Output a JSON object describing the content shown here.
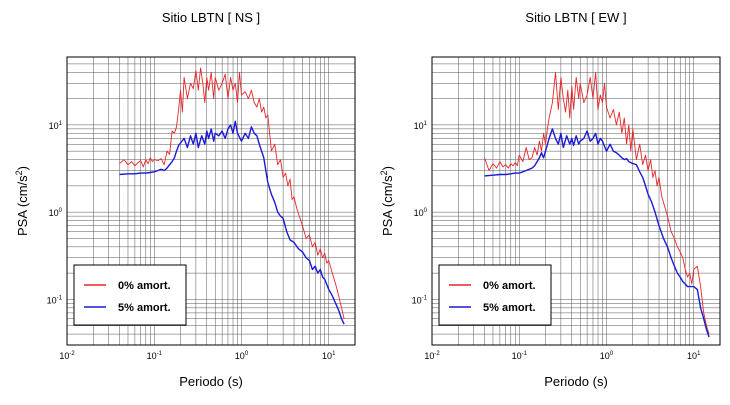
{
  "chart_data": [
    {
      "type": "line",
      "title": "Sitio LBTN [ NS ]",
      "xlabel": "Periodo (s)",
      "ylabel": "PSA (cm/s",
      "ylabel_sup": "2",
      "ylabel_close": ")",
      "xscale": "log",
      "yscale": "log",
      "xlim": [
        0.01,
        20
      ],
      "ylim": [
        0.03,
        60
      ],
      "grid": true,
      "legend_position": "bottom-left",
      "series": [
        {
          "name": "0% amort.",
          "color": "#e8262a",
          "x": [
            0.04,
            0.045,
            0.05,
            0.055,
            0.06,
            0.065,
            0.07,
            0.075,
            0.08,
            0.085,
            0.09,
            0.095,
            0.1,
            0.11,
            0.12,
            0.13,
            0.14,
            0.15,
            0.16,
            0.17,
            0.18,
            0.19,
            0.2,
            0.21,
            0.22,
            0.24,
            0.26,
            0.28,
            0.3,
            0.32,
            0.34,
            0.36,
            0.38,
            0.4,
            0.42,
            0.45,
            0.48,
            0.5,
            0.55,
            0.6,
            0.65,
            0.7,
            0.75,
            0.8,
            0.85,
            0.9,
            0.95,
            1.0,
            1.1,
            1.2,
            1.3,
            1.4,
            1.5,
            1.6,
            1.7,
            1.8,
            1.9,
            2.0,
            2.2,
            2.4,
            2.6,
            2.8,
            3.0,
            3.2,
            3.4,
            3.6,
            3.8,
            4.0,
            4.3,
            4.6,
            5.0,
            5.5,
            6.0,
            6.5,
            7.0,
            7.5,
            8.0,
            8.5,
            9.0,
            9.5,
            10,
            11,
            12,
            13,
            14,
            15
          ],
          "values": [
            3.6,
            4.0,
            3.5,
            3.8,
            3.4,
            3.7,
            3.9,
            3.3,
            4.0,
            3.6,
            4.2,
            3.8,
            4.0,
            3.9,
            4.1,
            3.5,
            5.0,
            4.6,
            8.5,
            8.0,
            9.5,
            15,
            25,
            14,
            35,
            20,
            30,
            26,
            42,
            25,
            45,
            30,
            18,
            35,
            25,
            40,
            20,
            35,
            25,
            30,
            38,
            20,
            35,
            25,
            30,
            18,
            40,
            22,
            24,
            20,
            25,
            18,
            16,
            20,
            14,
            16,
            12,
            13,
            5,
            6,
            3.5,
            4,
            2.5,
            2.8,
            2,
            2.4,
            1.4,
            1.5,
            1.1,
            0.9,
            0.7,
            0.5,
            0.55,
            0.4,
            0.45,
            0.32,
            0.38,
            0.3,
            0.34,
            0.26,
            0.28,
            0.2,
            0.15,
            0.11,
            0.08,
            0.06
          ]
        },
        {
          "name": "5% amort.",
          "color": "#1a1ad6",
          "x": [
            0.04,
            0.05,
            0.06,
            0.07,
            0.08,
            0.09,
            0.1,
            0.11,
            0.12,
            0.13,
            0.14,
            0.15,
            0.16,
            0.17,
            0.18,
            0.19,
            0.2,
            0.22,
            0.24,
            0.26,
            0.28,
            0.3,
            0.32,
            0.35,
            0.38,
            0.4,
            0.42,
            0.45,
            0.48,
            0.5,
            0.55,
            0.6,
            0.65,
            0.7,
            0.75,
            0.8,
            0.85,
            0.9,
            1.0,
            1.1,
            1.2,
            1.3,
            1.4,
            1.5,
            1.6,
            1.7,
            1.8,
            1.9,
            2.0,
            2.2,
            2.4,
            2.6,
            2.8,
            3.0,
            3.3,
            3.6,
            4.0,
            4.5,
            5.0,
            5.5,
            6.0,
            6.5,
            7.0,
            7.5,
            8.0,
            8.5,
            9.0,
            10,
            11,
            12,
            13,
            14,
            15
          ],
          "values": [
            2.7,
            2.75,
            2.75,
            2.8,
            2.8,
            2.85,
            2.9,
            3.0,
            3.1,
            3.0,
            3.2,
            3.5,
            3.8,
            4.2,
            5.0,
            5.8,
            6.2,
            7.0,
            5.5,
            7.5,
            6.0,
            8.0,
            5.5,
            7.5,
            6.0,
            8.5,
            7.0,
            9.0,
            6.5,
            8.0,
            7.5,
            8.5,
            7.0,
            9.0,
            10,
            8.0,
            11,
            8.0,
            6.5,
            8.0,
            7.0,
            9.5,
            8.0,
            7.5,
            6.0,
            5.0,
            4.2,
            3.0,
            2.2,
            1.6,
            1.3,
            1.0,
            0.9,
            0.85,
            0.6,
            0.48,
            0.45,
            0.38,
            0.35,
            0.3,
            0.28,
            0.22,
            0.24,
            0.2,
            0.22,
            0.18,
            0.17,
            0.13,
            0.11,
            0.09,
            0.075,
            0.06,
            0.052
          ]
        }
      ],
      "legend": [
        "0% amort.",
        "5% amort."
      ]
    },
    {
      "type": "line",
      "title": "Sitio LBTN [ EW ]",
      "xlabel": "Periodo (s)",
      "ylabel": "PSA (cm/s",
      "ylabel_sup": "2",
      "ylabel_close": ")",
      "xscale": "log",
      "yscale": "log",
      "xlim": [
        0.01,
        20
      ],
      "ylim": [
        0.03,
        60
      ],
      "grid": true,
      "legend_position": "bottom-left",
      "series": [
        {
          "name": "0% amort.",
          "color": "#e8262a",
          "x": [
            0.04,
            0.045,
            0.05,
            0.055,
            0.06,
            0.065,
            0.07,
            0.075,
            0.08,
            0.085,
            0.09,
            0.095,
            0.1,
            0.11,
            0.12,
            0.13,
            0.14,
            0.15,
            0.16,
            0.17,
            0.18,
            0.19,
            0.2,
            0.21,
            0.22,
            0.24,
            0.26,
            0.28,
            0.3,
            0.32,
            0.34,
            0.36,
            0.38,
            0.4,
            0.42,
            0.45,
            0.48,
            0.5,
            0.55,
            0.6,
            0.65,
            0.7,
            0.75,
            0.8,
            0.85,
            0.9,
            0.95,
            1.0,
            1.1,
            1.2,
            1.3,
            1.4,
            1.5,
            1.6,
            1.7,
            1.8,
            1.9,
            2.0,
            2.2,
            2.4,
            2.6,
            2.8,
            3.0,
            3.2,
            3.4,
            3.6,
            3.8,
            4.0,
            4.3,
            4.6,
            5.0,
            5.5,
            6.0,
            6.5,
            7.0,
            7.5,
            8.0,
            8.5,
            9.0,
            9.5,
            10,
            11,
            12,
            13,
            14,
            15
          ],
          "values": [
            4.2,
            3.0,
            3.6,
            3.2,
            3.8,
            3.3,
            3.5,
            3.2,
            3.6,
            3.4,
            3.7,
            3.4,
            4.5,
            3.8,
            5.5,
            4.0,
            4.2,
            5.5,
            4.5,
            6.5,
            5.0,
            8.0,
            6.0,
            9.0,
            12,
            18,
            40,
            15,
            35,
            20,
            14,
            25,
            12,
            28,
            15,
            35,
            20,
            30,
            18,
            22,
            35,
            20,
            40,
            15,
            22,
            18,
            30,
            16,
            12,
            15,
            10,
            14,
            8,
            12,
            6,
            10,
            5,
            9,
            4,
            6,
            3.5,
            4.5,
            3,
            4,
            2.5,
            3,
            2,
            2.5,
            1.5,
            1.2,
            0.9,
            0.6,
            0.5,
            0.4,
            0.35,
            0.3,
            0.22,
            0.18,
            0.2,
            0.15,
            0.22,
            0.24,
            0.14,
            0.07,
            0.05,
            0.04
          ]
        },
        {
          "name": "5% amort.",
          "color": "#1a1ad6",
          "x": [
            0.04,
            0.05,
            0.06,
            0.07,
            0.08,
            0.09,
            0.1,
            0.11,
            0.12,
            0.13,
            0.14,
            0.15,
            0.16,
            0.17,
            0.18,
            0.19,
            0.2,
            0.22,
            0.24,
            0.26,
            0.28,
            0.3,
            0.32,
            0.35,
            0.38,
            0.4,
            0.42,
            0.45,
            0.48,
            0.5,
            0.55,
            0.6,
            0.65,
            0.7,
            0.75,
            0.8,
            0.85,
            0.9,
            1.0,
            1.1,
            1.2,
            1.3,
            1.4,
            1.5,
            1.6,
            1.7,
            1.8,
            1.9,
            2.0,
            2.2,
            2.4,
            2.6,
            2.8,
            3.0,
            3.3,
            3.6,
            4.0,
            4.5,
            5.0,
            5.5,
            6.0,
            6.5,
            7.0,
            7.5,
            8.0,
            8.5,
            9.0,
            10,
            11,
            12,
            13,
            14,
            15
          ],
          "values": [
            2.6,
            2.65,
            2.7,
            2.7,
            2.75,
            2.8,
            2.8,
            2.9,
            3.0,
            3.1,
            3.2,
            3.4,
            3.8,
            4.2,
            4.8,
            4.2,
            5.0,
            7.0,
            9.0,
            7.0,
            6.0,
            8.0,
            5.5,
            7.5,
            6.0,
            7.0,
            5.8,
            7.5,
            6.0,
            6.5,
            7.0,
            8.5,
            6.5,
            7.0,
            8.0,
            6.0,
            7.0,
            6.5,
            5.0,
            6.0,
            5.0,
            4.8,
            4.5,
            4.2,
            4.0,
            4.1,
            3.8,
            3.7,
            3.6,
            3.5,
            2.9,
            2.5,
            2.0,
            1.6,
            1.3,
            1.0,
            0.7,
            0.5,
            0.4,
            0.3,
            0.24,
            0.2,
            0.18,
            0.16,
            0.15,
            0.14,
            0.14,
            0.14,
            0.13,
            0.08,
            0.06,
            0.045,
            0.037
          ]
        }
      ],
      "legend": [
        "0% amort.",
        "5% amort."
      ]
    }
  ],
  "tick_labels": {
    "x": [
      {
        "base": "10",
        "exp": "-2"
      },
      {
        "base": "10",
        "exp": "-1"
      },
      {
        "base": "10",
        "exp": "0"
      },
      {
        "base": "10",
        "exp": "1"
      }
    ],
    "y": [
      {
        "base": "10",
        "exp": "-1"
      },
      {
        "base": "10",
        "exp": "0"
      },
      {
        "base": "10",
        "exp": "1"
      }
    ]
  }
}
